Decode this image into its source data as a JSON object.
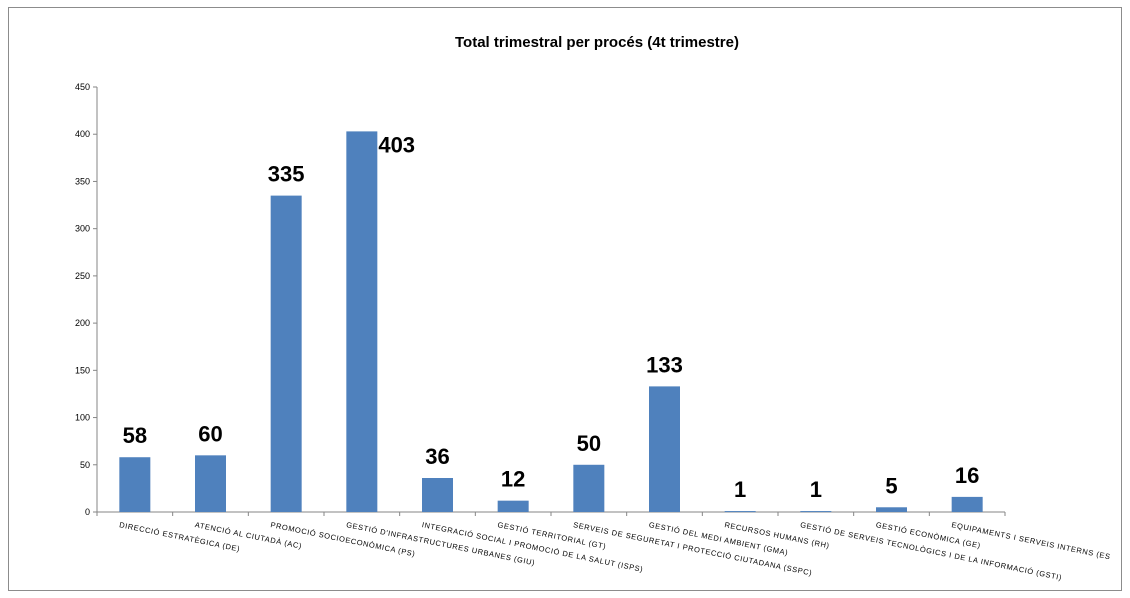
{
  "chart_data": {
    "type": "bar",
    "title": "Total trimestral per procés (4t trimestre)",
    "xlabel": "",
    "ylabel": "",
    "ylim": [
      0,
      450
    ],
    "yticks": [
      0,
      50,
      100,
      150,
      200,
      250,
      300,
      350,
      400,
      450
    ],
    "grid": false,
    "legend": "none",
    "bar_color": "#4f81bd",
    "categories": [
      "DIRECCIÓ ESTRATÈGICA (DE)",
      "ATENCIÓ AL CIUTADÀ (AC)",
      "PROMOCIÓ SOCIOECONÒMICA (PS)",
      "GESTIÓ D'INFRASTRUCTURES URBANES (GIU)",
      "INTEGRACIÓ SOCIAL I PROMOCIÓ DE LA SALUT (ISPS)",
      "GESTIÓ TERRITORIAL (GT)",
      "SERVEIS DE SEGURETAT I PROTECCIÓ CIUTADANA (SSPC)",
      "GESTIÓ DEL MEDI AMBIENT (GMA)",
      "RECURSOS HUMANS (RH)",
      "GESTIÓ DE SERVEIS TECNOLÒGICS I DE LA INFORMACIÓ (GSTI)",
      "GESTIÓ ECONÒMICA (GE)",
      "EQUIPAMENTS I SERVEIS INTERNS (ES"
    ],
    "values": [
      58,
      60,
      335,
      403,
      36,
      12,
      50,
      133,
      1,
      1,
      5,
      16
    ],
    "data_labels": [
      "58",
      "60",
      "335",
      "403",
      "36",
      "12",
      "50",
      "133",
      "1",
      "1",
      "5",
      "16"
    ]
  }
}
